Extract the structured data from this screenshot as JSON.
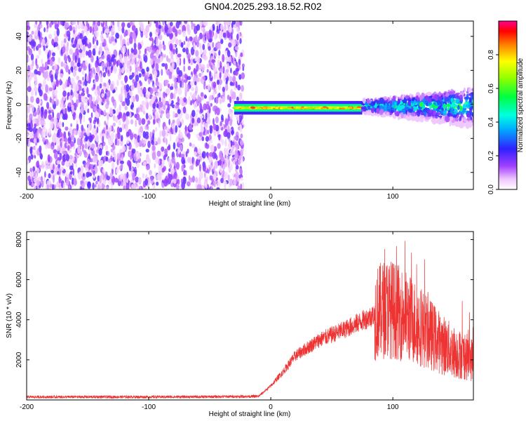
{
  "figure_title": "GN04.2025.293.18.52.R02",
  "chart_data": [
    {
      "type": "heatmap",
      "title": "GN04.2025.293.18.52.R02",
      "xlabel": "Height of straight line (km)",
      "ylabel": "Frequency (Hz)",
      "xlim": [
        -200,
        166
      ],
      "ylim": [
        -50,
        49
      ],
      "xticks": [
        -200,
        -100,
        0,
        100
      ],
      "yticks": [
        -40,
        -20,
        0,
        20,
        40
      ],
      "colorbar": {
        "label": "Normalized spectral amplitude",
        "range": [
          0.0,
          1.0
        ],
        "ticks": [
          0.0,
          0.2,
          0.4,
          0.6,
          0.8
        ],
        "colormap": "rainbow"
      },
      "regions": [
        {
          "name": "noise",
          "x_range": [
            -200,
            -27
          ],
          "freq_range": [
            -50,
            49
          ],
          "amplitude": 0.1
        },
        {
          "name": "signal-band",
          "x_range": [
            -30,
            75
          ],
          "freq_center": -2,
          "half_width": 2.5,
          "amplitude_peak": 0.9
        },
        {
          "name": "broadening-band",
          "x_range": [
            75,
            166
          ],
          "freq_center": -1,
          "half_width": 9,
          "amplitude_peak": 0.6
        }
      ]
    },
    {
      "type": "line",
      "xlabel": "Height of straight line (km)",
      "ylabel": "SNR (10 * v/v)",
      "xlim": [
        -200,
        166
      ],
      "ylim": [
        0,
        8400
      ],
      "xticks": [
        -200,
        -100,
        0,
        100
      ],
      "yticks": [
        2000,
        4000,
        6000,
        8000
      ],
      "series": [
        {
          "name": "SNR",
          "color": "#ee3333",
          "x": [
            -200,
            -150,
            -100,
            -50,
            -10,
            0,
            10,
            20,
            40,
            60,
            80,
            95,
            100,
            110,
            120,
            130,
            140,
            150,
            166
          ],
          "y": [
            150,
            150,
            150,
            160,
            180,
            700,
            1400,
            2200,
            3000,
            3500,
            4100,
            4600,
            4500,
            4200,
            3800,
            3300,
            2800,
            2400,
            2000
          ]
        }
      ]
    }
  ]
}
